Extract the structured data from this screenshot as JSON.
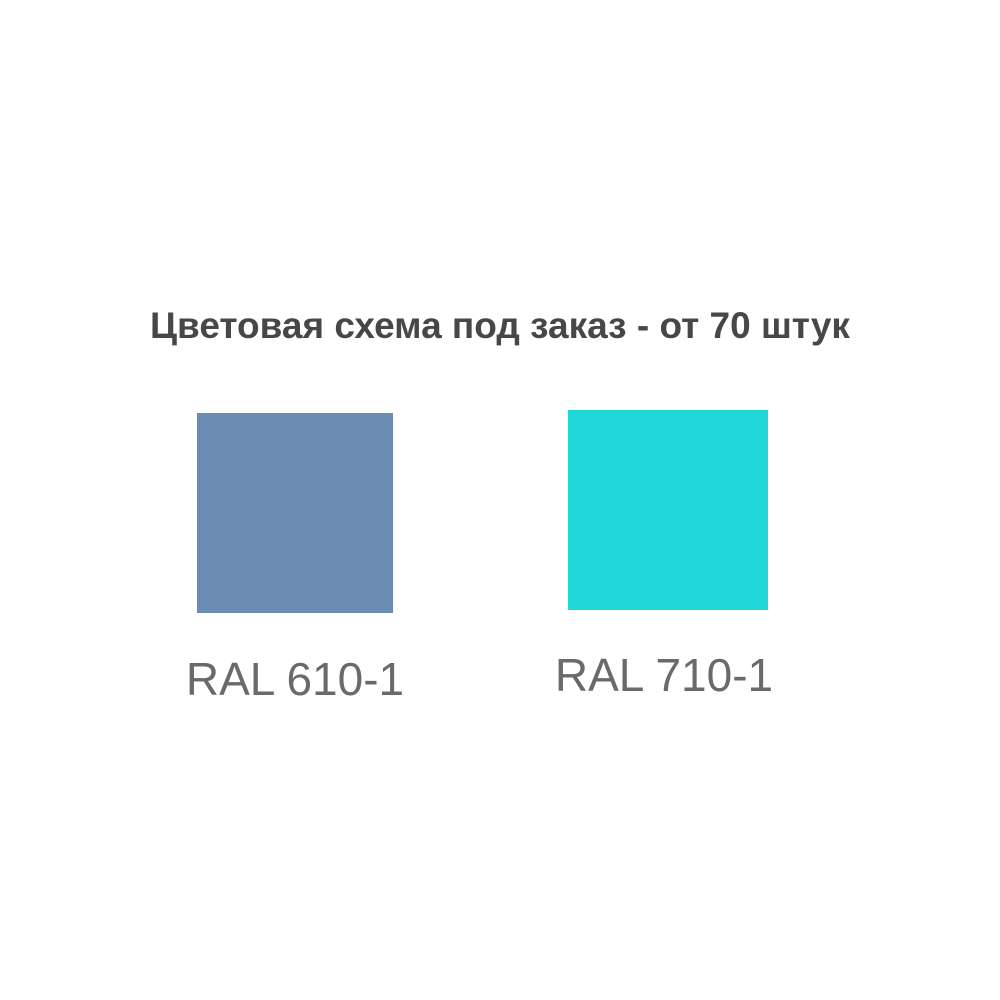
{
  "title": "Цветовая схема под заказ - от 70 штук",
  "swatches": [
    {
      "label": "RAL 610-1",
      "color": "#6c8db1"
    },
    {
      "label": "RAL 710-1",
      "color": "#20d6d6"
    }
  ]
}
